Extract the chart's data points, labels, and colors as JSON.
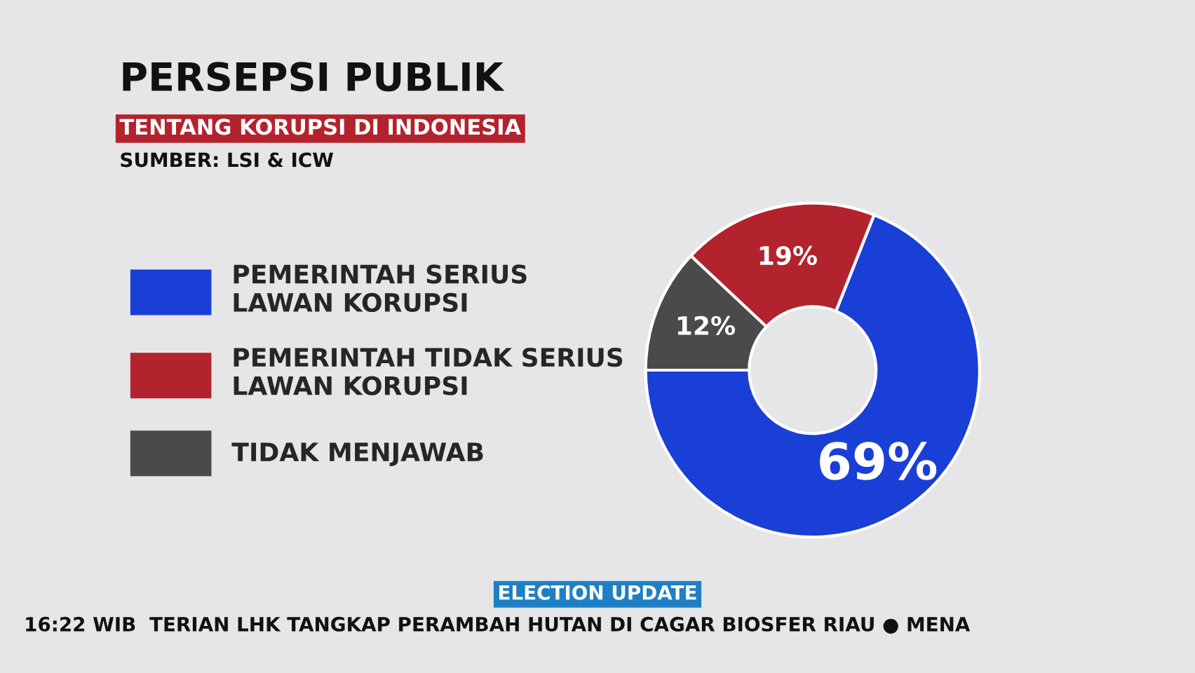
{
  "chart_data": {
    "type": "donut",
    "title": "PERSEPSI PUBLIK",
    "subtitle": "TENTANG KORUPSI DI INDONESIA",
    "annotations": [
      "SUMBER: LSI & ICW",
      "ELECTION UPDATE",
      "16:22 WIB",
      "TERIAN LHK TANGKAP PERAMBAH HUTAN DI CAGAR BIOSFER RIAU ● MENA"
    ],
    "categories": [
      "PEMERINTAH SERIUS\nLAWAN KORUPSI",
      "PEMERINTAH TIDAK SERIUS\nLAWAN KORUPSI",
      "TIDAK MENJAWAB"
    ],
    "values": [
      69,
      19,
      12
    ],
    "colors": [
      "#1a3fd6",
      "#b3232d",
      "#4a4a4a"
    ],
    "value_labels": [
      "69%",
      "19%",
      "12%"
    ],
    "legend": "left"
  }
}
